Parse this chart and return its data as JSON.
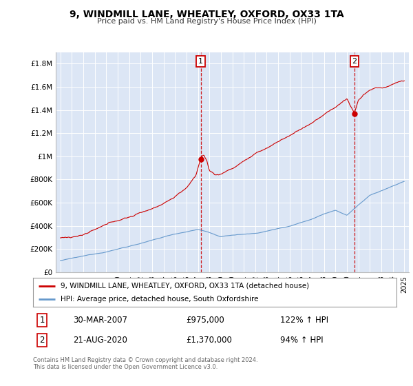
{
  "title1": "9, WINDMILL LANE, WHEATLEY, OXFORD, OX33 1TA",
  "title2": "Price paid vs. HM Land Registry's House Price Index (HPI)",
  "legend_line1": "9, WINDMILL LANE, WHEATLEY, OXFORD, OX33 1TA (detached house)",
  "legend_line2": "HPI: Average price, detached house, South Oxfordshire",
  "annotation1_date": "30-MAR-2007",
  "annotation1_price": "£975,000",
  "annotation1_hpi": "122% ↑ HPI",
  "annotation2_date": "21-AUG-2020",
  "annotation2_price": "£1,370,000",
  "annotation2_hpi": "94% ↑ HPI",
  "footer": "Contains HM Land Registry data © Crown copyright and database right 2024.\nThis data is licensed under the Open Government Licence v3.0.",
  "color_red": "#cc0000",
  "color_blue": "#6699cc",
  "color_bg": "#dce6f5",
  "color_grid": "#ffffff",
  "ylim": [
    0,
    1900000
  ],
  "yticks": [
    0,
    200000,
    400000,
    600000,
    800000,
    1000000,
    1200000,
    1400000,
    1600000,
    1800000
  ],
  "ytick_labels": [
    "£0",
    "£200K",
    "£400K",
    "£600K",
    "£800K",
    "£1M",
    "£1.2M",
    "£1.4M",
    "£1.6M",
    "£1.8M"
  ],
  "marker1_x": 2007.24,
  "marker1_y": 975000,
  "marker2_x": 2020.65,
  "marker2_y": 1370000,
  "vline1_x": 2007.24,
  "vline2_x": 2020.65,
  "xlim_left": 1994.6,
  "xlim_right": 2025.4
}
